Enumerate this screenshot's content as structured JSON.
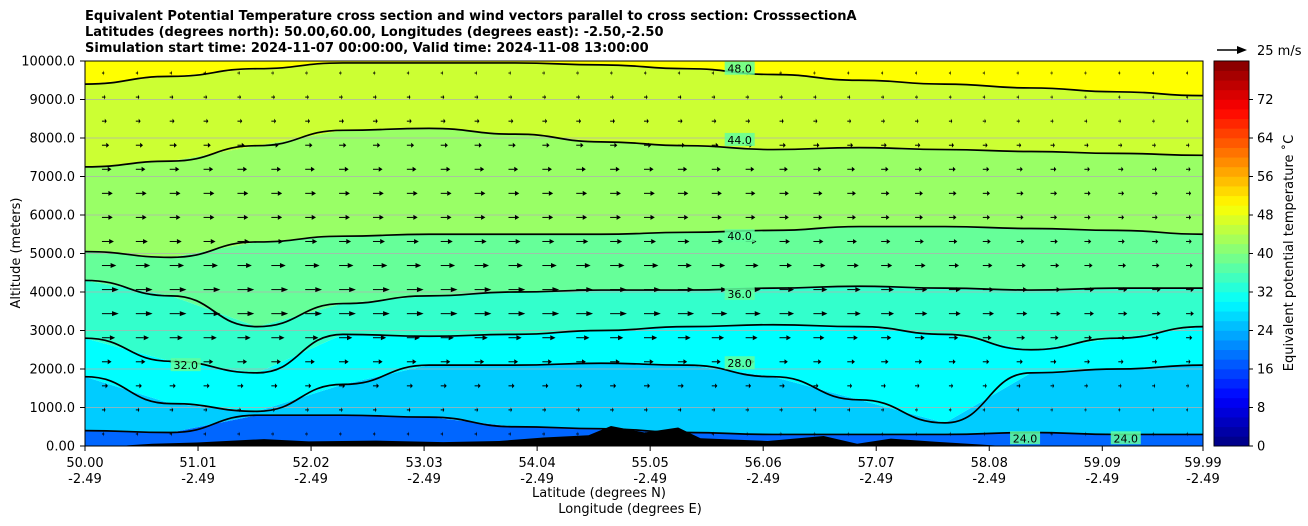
{
  "chart_data": {
    "type": "filled-contour-cross-section",
    "title_lines": [
      "Equivalent Potential Temperature cross section and wind vectors parallel to cross section: CrosssectionA",
      "Latitudes (degrees north): 50.00,60.00, Longitudes (degrees east): -2.50,-2.50",
      "Simulation start time: 2024-11-07 00:00:00, Valid time: 2024-11-08 13:00:00"
    ],
    "ylabel": "Altitude (meters)",
    "xlabel_lines": [
      "Latitude (degrees N)",
      "Longitude (degrees E)"
    ],
    "ylim": [
      0,
      10000
    ],
    "yticks": [
      "0.00",
      "1000.0",
      "2000.0",
      "3000.0",
      "4000.0",
      "5000.0",
      "6000.0",
      "7000.0",
      "8000.0",
      "9000.0",
      "10000.0"
    ],
    "xlim": [
      50.0,
      59.99
    ],
    "xticks": [
      {
        "lat": "50.00",
        "lon": "-2.49"
      },
      {
        "lat": "51.01",
        "lon": "-2.49"
      },
      {
        "lat": "52.02",
        "lon": "-2.49"
      },
      {
        "lat": "53.03",
        "lon": "-2.49"
      },
      {
        "lat": "54.04",
        "lon": "-2.49"
      },
      {
        "lat": "55.05",
        "lon": "-2.49"
      },
      {
        "lat": "56.06",
        "lon": "-2.49"
      },
      {
        "lat": "57.07",
        "lon": "-2.49"
      },
      {
        "lat": "58.08",
        "lon": "-2.49"
      },
      {
        "lat": "59.09",
        "lon": "-2.49"
      },
      {
        "lat": "59.99",
        "lon": "-2.49"
      }
    ],
    "grid": "horizontal",
    "colorbar": {
      "label": "Equivalent potential temperature ˚C",
      "range": [
        0,
        80
      ],
      "ticks": [
        "0",
        "8",
        "16",
        "24",
        "32",
        "40",
        "48",
        "56",
        "64",
        "72"
      ],
      "colormap": "jet"
    },
    "quiver_key": {
      "label": "25 m/s",
      "value": 25
    },
    "contours": [
      {
        "value": 48.0,
        "altitudes": [
          9400,
          9600,
          9800,
          9950,
          9950,
          9950,
          9900,
          9800,
          9650,
          9500,
          9400,
          9300,
          9200,
          9100
        ]
      },
      {
        "value": 44.0,
        "altitudes": [
          7250,
          7400,
          7800,
          8200,
          8250,
          8100,
          7900,
          7800,
          7700,
          7750,
          7700,
          7650,
          7600,
          7550
        ]
      },
      {
        "value": 40.0,
        "altitudes": [
          5050,
          4900,
          5300,
          5450,
          5500,
          5500,
          5500,
          5550,
          5600,
          5700,
          5700,
          5650,
          5600,
          5500
        ]
      },
      {
        "value": 36.0,
        "altitudes": [
          4300,
          3900,
          3100,
          3700,
          3900,
          4000,
          4050,
          4050,
          4100,
          4150,
          4100,
          4050,
          4100,
          4100
        ]
      },
      {
        "value": 32.0,
        "altitudes": [
          2800,
          2200,
          1900,
          2900,
          2850,
          2900,
          3000,
          3100,
          3150,
          3100,
          2900,
          2500,
          2800,
          3100
        ]
      },
      {
        "value": 28.0,
        "altitudes": [
          1800,
          1100,
          900,
          1600,
          2100,
          2100,
          2150,
          2100,
          1800,
          1200,
          600,
          1900,
          2000,
          2100
        ]
      },
      {
        "value": 24.0,
        "altitudes": [
          400,
          350,
          800,
          800,
          750,
          500,
          450,
          350,
          300,
          300,
          300,
          350,
          300,
          300
        ]
      }
    ],
    "contour_labels": [
      {
        "text": "48.0",
        "lat": 55.85,
        "alt": 9800
      },
      {
        "text": "44.0",
        "lat": 55.85,
        "alt": 7950
      },
      {
        "text": "40.0",
        "lat": 55.85,
        "alt": 5450
      },
      {
        "text": "36.0",
        "lat": 55.85,
        "alt": 3950
      },
      {
        "text": "28.0",
        "lat": 55.85,
        "alt": 2150
      },
      {
        "text": "32.0",
        "lat": 50.9,
        "alt": 2100
      },
      {
        "text": "24.0",
        "lat": 58.4,
        "alt": 200
      },
      {
        "text": "24.0",
        "lat": 59.3,
        "alt": 200
      }
    ],
    "wind_vectors": {
      "rows": 16,
      "cols": 33,
      "max_speed": 25,
      "speed_profile_by_altitude": [
        2,
        3,
        5,
        8,
        11,
        14,
        14,
        12,
        10,
        9,
        9,
        8,
        6,
        4,
        3,
        2
      ]
    }
  }
}
